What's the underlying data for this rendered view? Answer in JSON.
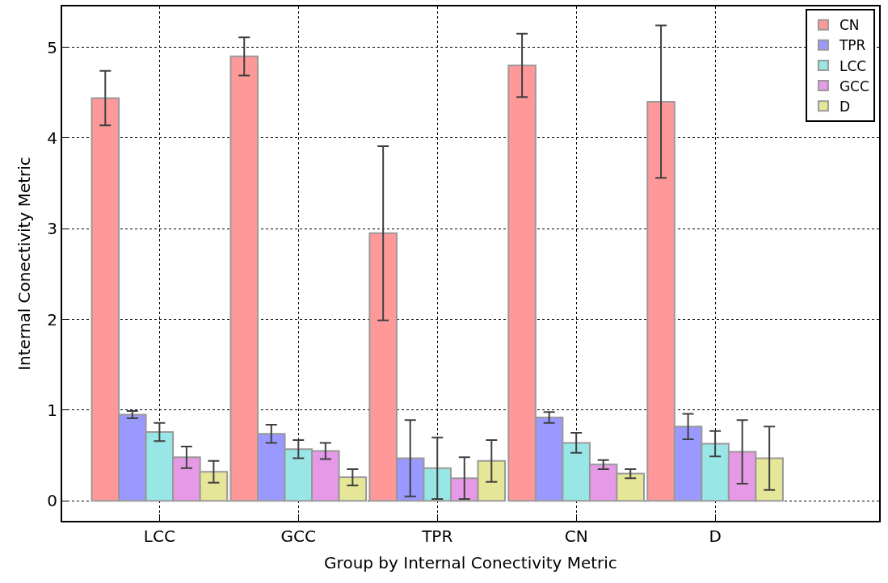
{
  "chart_data": {
    "type": "bar",
    "xlabel": "Group by Internal Conectivity Metric",
    "ylabel": "Internal Conectivity Metric",
    "categories": [
      "LCC",
      "GCC",
      "TPR",
      "CN",
      "D"
    ],
    "series": [
      {
        "name": "CN",
        "color": "#ff9999",
        "values": [
          4.44,
          4.9,
          2.95,
          4.8,
          4.4
        ],
        "errors": [
          0.3,
          0.21,
          0.96,
          0.35,
          0.84
        ]
      },
      {
        "name": "TPR",
        "color": "#9999ff",
        "values": [
          0.95,
          0.74,
          0.47,
          0.92,
          0.82
        ],
        "errors": [
          0.04,
          0.1,
          0.42,
          0.06,
          0.14
        ]
      },
      {
        "name": "LCC",
        "color": "#99e6e6",
        "values": [
          0.76,
          0.57,
          0.36,
          0.64,
          0.63
        ],
        "errors": [
          0.1,
          0.1,
          0.34,
          0.11,
          0.14
        ]
      },
      {
        "name": "GCC",
        "color": "#e699e6",
        "values": [
          0.48,
          0.55,
          0.25,
          0.4,
          0.54
        ],
        "errors": [
          0.12,
          0.09,
          0.23,
          0.05,
          0.35
        ]
      },
      {
        "name": "D",
        "color": "#e6e699",
        "values": [
          0.32,
          0.26,
          0.44,
          0.3,
          0.47
        ],
        "errors": [
          0.12,
          0.09,
          0.23,
          0.05,
          0.35
        ]
      }
    ],
    "ylim": [
      -0.22,
      5.45
    ],
    "yticks": [
      0,
      1,
      2,
      3,
      4,
      5
    ],
    "grid": true,
    "legend": "top right"
  }
}
